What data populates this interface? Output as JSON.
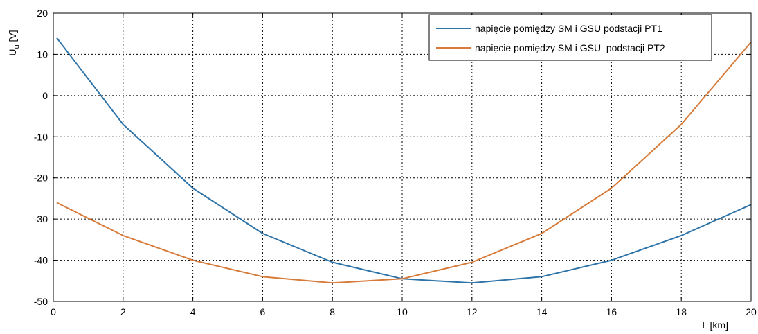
{
  "chart_data": {
    "type": "line",
    "xlabel": "L [km]",
    "ylabel": {
      "main": "U",
      "subscript": "u",
      "unit": " [V]"
    },
    "xlim": [
      0,
      20
    ],
    "ylim": [
      -50,
      20
    ],
    "xticks": [
      0,
      2,
      4,
      6,
      8,
      10,
      12,
      14,
      16,
      18,
      20
    ],
    "yticks": [
      -50,
      -40,
      -30,
      -20,
      -10,
      0,
      10,
      20
    ],
    "grid": true,
    "legend_position": "top-right",
    "series": [
      {
        "name": "napięcie pomiędzy SM i GSU podstacji PT1",
        "color": "#2e73a8",
        "x": [
          0.1,
          2,
          4,
          6,
          8,
          10,
          12,
          14,
          16,
          18,
          20
        ],
        "y": [
          14,
          -7,
          -22.5,
          -33.5,
          -40.5,
          -44.5,
          -45.5,
          -44,
          -40,
          -34,
          -26.5
        ]
      },
      {
        "name": "napięcie pomiędzy SM i GSU  podstacji PT2",
        "color": "#d77b3a",
        "x": [
          0.1,
          2,
          4,
          6,
          8,
          10,
          12,
          14,
          16,
          18,
          20
        ],
        "y": [
          -26,
          -34,
          -40,
          -44,
          -45.5,
          -44.5,
          -40.5,
          -33.5,
          -22.5,
          -7,
          13
        ]
      }
    ]
  }
}
